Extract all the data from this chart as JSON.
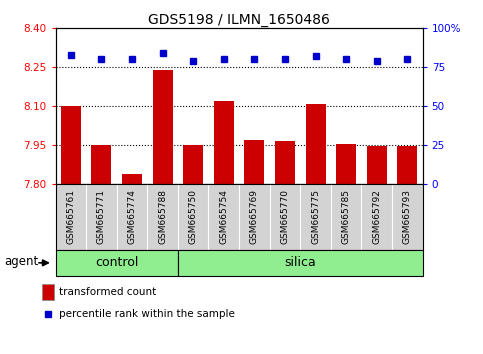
{
  "title": "GDS5198 / ILMN_1650486",
  "samples": [
    "GSM665761",
    "GSM665771",
    "GSM665774",
    "GSM665788",
    "GSM665750",
    "GSM665754",
    "GSM665769",
    "GSM665770",
    "GSM665775",
    "GSM665785",
    "GSM665792",
    "GSM665793"
  ],
  "groups": [
    "control",
    "control",
    "control",
    "control",
    "silica",
    "silica",
    "silica",
    "silica",
    "silica",
    "silica",
    "silica",
    "silica"
  ],
  "bar_values": [
    8.1,
    7.95,
    7.84,
    8.24,
    7.95,
    8.12,
    7.97,
    7.965,
    8.11,
    7.955,
    7.945,
    7.945
  ],
  "percentile_values": [
    83,
    80,
    80,
    84,
    79,
    80,
    80,
    80,
    82,
    80,
    79,
    80
  ],
  "bar_bottom": 7.8,
  "ylim_left": [
    7.8,
    8.4
  ],
  "ylim_right": [
    0,
    100
  ],
  "yticks_left": [
    7.8,
    7.95,
    8.1,
    8.25,
    8.4
  ],
  "yticks_right": [
    0,
    25,
    50,
    75,
    100
  ],
  "ytick_labels_right": [
    "0",
    "25",
    "50",
    "75",
    "100%"
  ],
  "hlines": [
    7.95,
    8.1,
    8.25
  ],
  "bar_color": "#cc0000",
  "dot_color": "#0000cc",
  "group_color": "#90ee90",
  "bg_color": "#ffffff",
  "xticklabel_bg": "#d3d3d3",
  "bar_width": 0.65,
  "legend_items": [
    "transformed count",
    "percentile rank within the sample"
  ],
  "legend_colors": [
    "#cc0000",
    "#0000cc"
  ],
  "group_label": "agent",
  "control_label": "control",
  "silica_label": "silica",
  "n_control": 4,
  "n_total": 12
}
